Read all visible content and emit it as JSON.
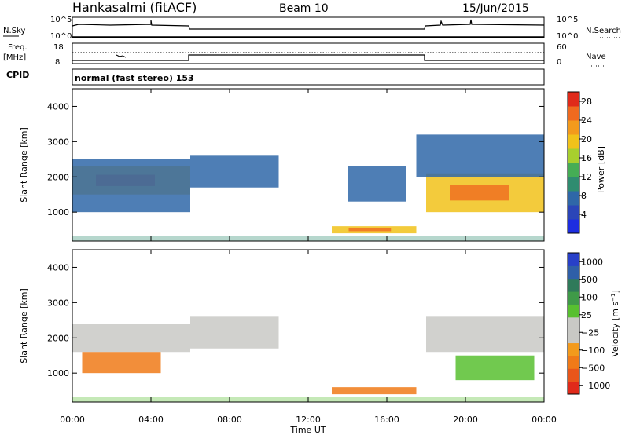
{
  "header": {
    "station": "Hankasalmi (fitACF)",
    "beam": "Beam 10",
    "date": "15/Jun/2015"
  },
  "top_panels": {
    "nsky_label": "N.Sky",
    "nsearch_label": "N.Search",
    "freq_label_1": "Freq.",
    "freq_label_2": "[MHz]",
    "nave_label": "Nave",
    "cpid_label": "CPID",
    "nsky_ticks": [
      "10^5",
      "10^0"
    ],
    "nsearch_ticks": [
      "10^5",
      "10^0"
    ],
    "freq_ticks": [
      "18",
      "8"
    ],
    "nave_ticks": [
      "60",
      "0"
    ],
    "cpid_text": "normal (fast stereo) 153"
  },
  "colors": {
    "power_scale": [
      "#1d2de0",
      "#2b45b8",
      "#2f67a8",
      "#2f8c70",
      "#45ad55",
      "#a8cf2e",
      "#f1c21a",
      "#f39a1c",
      "#ef6a1f",
      "#e02a1a"
    ],
    "velocity_scale": [
      "#2840c8",
      "#2f5fa8",
      "#2f7a5a",
      "#3f9a48",
      "#58c030",
      "#c9c9c5",
      "#c8c8c4",
      "#f39a1c",
      "#f07a18",
      "#e8561a",
      "#e02a1a"
    ]
  },
  "chart_data": [
    {
      "type": "heatmap",
      "title": "",
      "xlabel": "",
      "ylabel": "Slant Range [km]",
      "xlim": [
        "00:00",
        "24:00"
      ],
      "ylim": [
        180,
        4500
      ],
      "x_ticks": [
        "00:00",
        "04:00",
        "08:00",
        "12:00",
        "16:00",
        "20:00",
        "00:00"
      ],
      "y_ticks": [
        1000,
        2000,
        3000,
        4000
      ],
      "colorbar": {
        "label": "Power [dB]",
        "ticks": [
          4,
          8,
          12,
          16,
          20,
          24,
          28
        ],
        "range": [
          0,
          30
        ]
      },
      "regions": [
        {
          "t0": 0.0,
          "t1": 6.0,
          "r0": 1500,
          "r1": 2300,
          "level": "high"
        },
        {
          "t0": 0.0,
          "t1": 6.0,
          "r0": 1000,
          "r1": 2500,
          "level": "low"
        },
        {
          "t0": 6.0,
          "t1": 10.5,
          "r0": 1700,
          "r1": 2600,
          "level": "low"
        },
        {
          "t0": 13.2,
          "t1": 17.5,
          "r0": 400,
          "r1": 600,
          "level": "high"
        },
        {
          "t0": 14.0,
          "t1": 17.0,
          "r0": 1300,
          "r1": 2300,
          "level": "low"
        },
        {
          "t0": 18.0,
          "t1": 24.0,
          "r0": 1000,
          "r1": 2100,
          "level": "high"
        },
        {
          "t0": 17.5,
          "t1": 24.0,
          "r0": 2000,
          "r1": 3200,
          "level": "low"
        }
      ]
    },
    {
      "type": "heatmap",
      "title": "",
      "xlabel": "Time UT",
      "ylabel": "Slant Range [km]",
      "xlim": [
        "00:00",
        "24:00"
      ],
      "ylim": [
        180,
        4500
      ],
      "x_ticks": [
        "00:00",
        "04:00",
        "08:00",
        "12:00",
        "16:00",
        "20:00",
        "00:00"
      ],
      "y_ticks": [
        1000,
        2000,
        3000,
        4000
      ],
      "colorbar": {
        "label": "Velocity [m s^-1]",
        "ticks": [
          1000,
          500,
          100,
          25,
          -25,
          -100,
          -500,
          -1000
        ]
      },
      "regions": [
        {
          "t0": 0.0,
          "t1": 6.0,
          "r0": 1600,
          "r1": 2400,
          "level": "ground"
        },
        {
          "t0": 0.5,
          "t1": 4.5,
          "r0": 1000,
          "r1": 1600,
          "level": "negative"
        },
        {
          "t0": 6.0,
          "t1": 10.5,
          "r0": 1700,
          "r1": 2600,
          "level": "ground"
        },
        {
          "t0": 13.2,
          "t1": 17.5,
          "r0": 400,
          "r1": 600,
          "level": "negative"
        },
        {
          "t0": 18.0,
          "t1": 24.0,
          "r0": 1600,
          "r1": 2600,
          "level": "ground"
        },
        {
          "t0": 19.5,
          "t1": 23.5,
          "r0": 800,
          "r1": 1500,
          "level": "positive"
        }
      ]
    }
  ]
}
